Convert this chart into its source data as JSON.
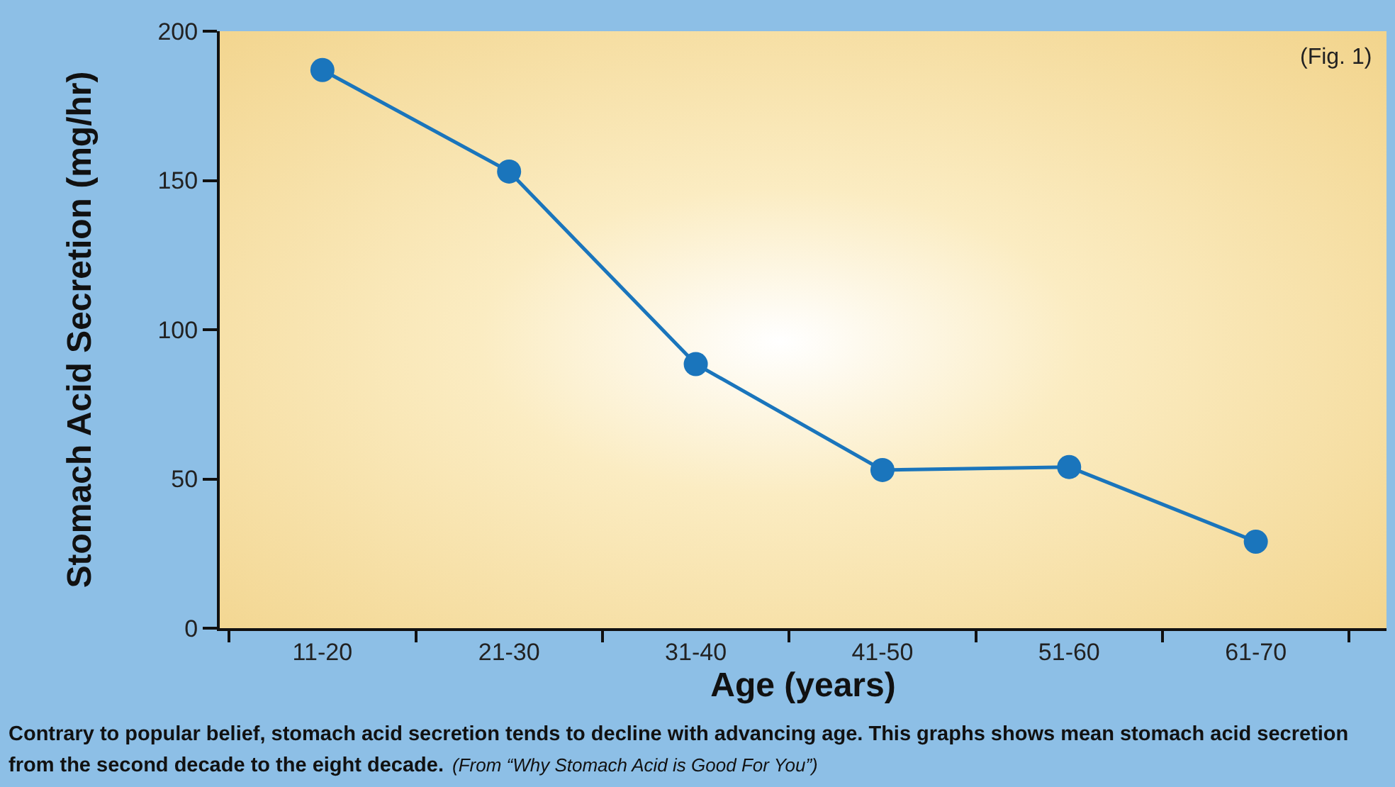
{
  "chart_data": {
    "type": "line",
    "categories": [
      "11-20",
      "21-30",
      "31-40",
      "41-50",
      "51-60",
      "61-70"
    ],
    "series": [
      {
        "color": "#1a75bc",
        "values": [
          187,
          153,
          88.5,
          53,
          54,
          29
        ]
      }
    ],
    "xlabel": "Age (years)",
    "ylabel": "Stomach Acid Secretion (mg/hr)",
    "ylim": [
      0,
      200
    ],
    "yticks": [
      0,
      50,
      100,
      150,
      200
    ],
    "grid": false,
    "legend": false,
    "marker": "circle",
    "line_style": "solid",
    "annotations": [
      "(Fig. 1)",
      "Contrary to popular belief, stomach acid secretion tends to decline with advancing age. This graphs shows mean stomach acid secretion from the second decade to the eight decade.",
      "(From “Why Stomach Acid is Good For You”)"
    ]
  }
}
